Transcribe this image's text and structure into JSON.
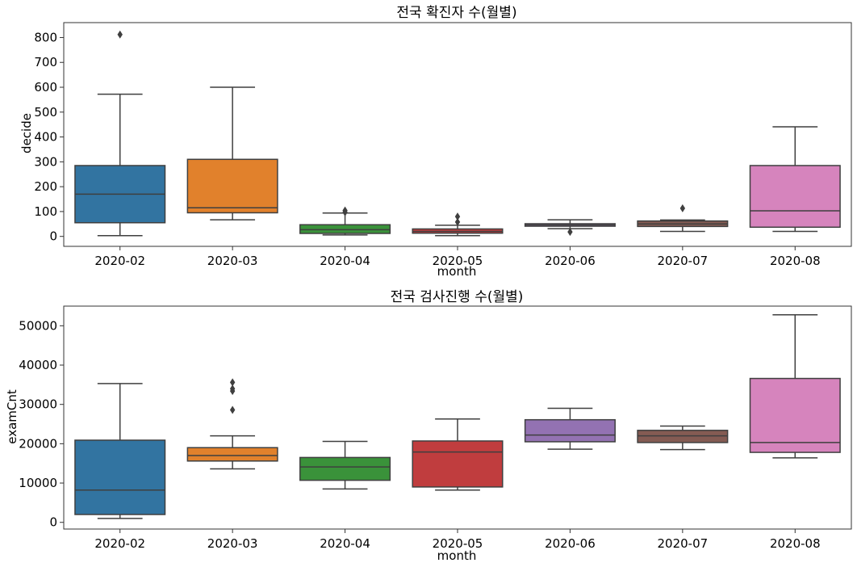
{
  "chart_data": [
    {
      "type": "box",
      "title": "전국 확진자 수(월별)",
      "xlabel": "month",
      "ylabel": "decide",
      "ylim": [
        -40,
        860
      ],
      "yticks": [
        0,
        100,
        200,
        300,
        400,
        500,
        600,
        700,
        800
      ],
      "categories": [
        "2020-02",
        "2020-03",
        "2020-04",
        "2020-05",
        "2020-06",
        "2020-07",
        "2020-08"
      ],
      "boxes": [
        {
          "category": "2020-02",
          "color": "#3274a1",
          "whisker_low": 3,
          "q1": 55,
          "median": 170,
          "q3": 285,
          "whisker_high": 572,
          "outliers": [
            812
          ]
        },
        {
          "category": "2020-03",
          "color": "#e1812c",
          "whisker_low": 67,
          "q1": 95,
          "median": 115,
          "q3": 310,
          "whisker_high": 600,
          "outliers": []
        },
        {
          "category": "2020-04",
          "color": "#3a923a",
          "whisker_low": 6,
          "q1": 12,
          "median": 27,
          "q3": 47,
          "whisker_high": 94,
          "outliers": [
            104,
            97
          ]
        },
        {
          "category": "2020-05",
          "color": "#c03d3e",
          "whisker_low": 3,
          "q1": 13,
          "median": 20,
          "q3": 30,
          "whisker_high": 45,
          "outliers": [
            58,
            80
          ]
        },
        {
          "category": "2020-06",
          "color": "#9372b2",
          "whisker_low": 31,
          "q1": 41,
          "median": 46,
          "q3": 51,
          "whisker_high": 67,
          "outliers": [
            18
          ]
        },
        {
          "category": "2020-07",
          "color": "#845b53",
          "whisker_low": 20,
          "q1": 40,
          "median": 50,
          "q3": 62,
          "whisker_high": 66,
          "outliers": [
            113
          ]
        },
        {
          "category": "2020-08",
          "color": "#d684bd",
          "whisker_low": 20,
          "q1": 37,
          "median": 103,
          "q3": 285,
          "whisker_high": 441,
          "outliers": []
        }
      ]
    },
    {
      "type": "box",
      "title": "전국 검사진행 수(월별)",
      "xlabel": "month",
      "ylabel": "examCnt",
      "ylim": [
        -1700,
        55000
      ],
      "yticks": [
        0,
        10000,
        20000,
        30000,
        40000,
        50000
      ],
      "categories": [
        "2020-02",
        "2020-03",
        "2020-04",
        "2020-05",
        "2020-06",
        "2020-07",
        "2020-08"
      ],
      "boxes": [
        {
          "category": "2020-02",
          "color": "#3274a1",
          "whisker_low": 1000,
          "q1": 2000,
          "median": 8200,
          "q3": 20900,
          "whisker_high": 35300,
          "outliers": []
        },
        {
          "category": "2020-03",
          "color": "#e1812c",
          "whisker_low": 13600,
          "q1": 15600,
          "median": 17000,
          "q3": 19000,
          "whisker_high": 22000,
          "outliers": [
            28600,
            33400,
            34000,
            35600
          ]
        },
        {
          "category": "2020-04",
          "color": "#3a923a",
          "whisker_low": 8500,
          "q1": 10700,
          "median": 14100,
          "q3": 16500,
          "whisker_high": 20600,
          "outliers": []
        },
        {
          "category": "2020-05",
          "color": "#c03d3e",
          "whisker_low": 8200,
          "q1": 9000,
          "median": 17900,
          "q3": 20700,
          "whisker_high": 26300,
          "outliers": []
        },
        {
          "category": "2020-06",
          "color": "#9372b2",
          "whisker_low": 18600,
          "q1": 20500,
          "median": 22200,
          "q3": 26100,
          "whisker_high": 29000,
          "outliers": []
        },
        {
          "category": "2020-07",
          "color": "#845b53",
          "whisker_low": 18500,
          "q1": 20300,
          "median": 22000,
          "q3": 23400,
          "whisker_high": 24500,
          "outliers": []
        },
        {
          "category": "2020-08",
          "color": "#d684bd",
          "whisker_low": 16400,
          "q1": 17800,
          "median": 20300,
          "q3": 36600,
          "whisker_high": 52800,
          "outliers": []
        }
      ]
    }
  ]
}
